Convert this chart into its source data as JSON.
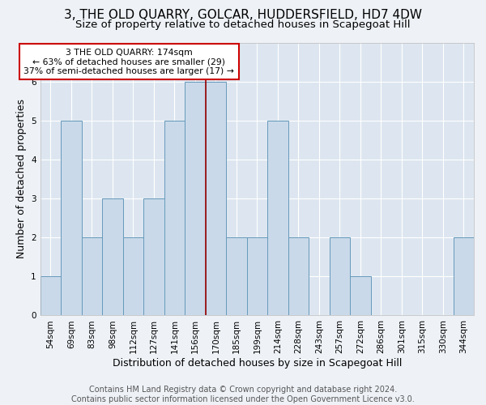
{
  "title": "3, THE OLD QUARRY, GOLCAR, HUDDERSFIELD, HD7 4DW",
  "subtitle": "Size of property relative to detached houses in Scapegoat Hill",
  "xlabel": "Distribution of detached houses by size in Scapegoat Hill",
  "ylabel": "Number of detached properties",
  "footer_line1": "Contains HM Land Registry data © Crown copyright and database right 2024.",
  "footer_line2": "Contains public sector information licensed under the Open Government Licence v3.0.",
  "bin_labels": [
    "54sqm",
    "69sqm",
    "83sqm",
    "98sqm",
    "112sqm",
    "127sqm",
    "141sqm",
    "156sqm",
    "170sqm",
    "185sqm",
    "199sqm",
    "214sqm",
    "228sqm",
    "243sqm",
    "257sqm",
    "272sqm",
    "286sqm",
    "301sqm",
    "315sqm",
    "330sqm",
    "344sqm"
  ],
  "bar_heights": [
    1,
    5,
    2,
    3,
    2,
    3,
    5,
    6,
    6,
    2,
    2,
    5,
    2,
    0,
    2,
    1,
    0,
    0,
    0,
    0,
    2
  ],
  "bar_color": "#c9d9e9",
  "bar_edge_color": "#6699bb",
  "property_line_x": 7.5,
  "property_line_color": "#990000",
  "annotation_text": "3 THE OLD QUARRY: 174sqm\n← 63% of detached houses are smaller (29)\n37% of semi-detached houses are larger (17) →",
  "annotation_box_color": "#ffffff",
  "annotation_box_edge_color": "#cc0000",
  "ylim": [
    0,
    7
  ],
  "yticks": [
    0,
    1,
    2,
    3,
    4,
    5,
    6
  ],
  "background_color": "#eef2f7",
  "plot_background_color": "#dde6f0",
  "grid_color": "#ffffff",
  "title_fontsize": 11,
  "subtitle_fontsize": 9.5,
  "xlabel_fontsize": 9,
  "ylabel_fontsize": 9,
  "tick_fontsize": 7.5,
  "footer_fontsize": 7
}
